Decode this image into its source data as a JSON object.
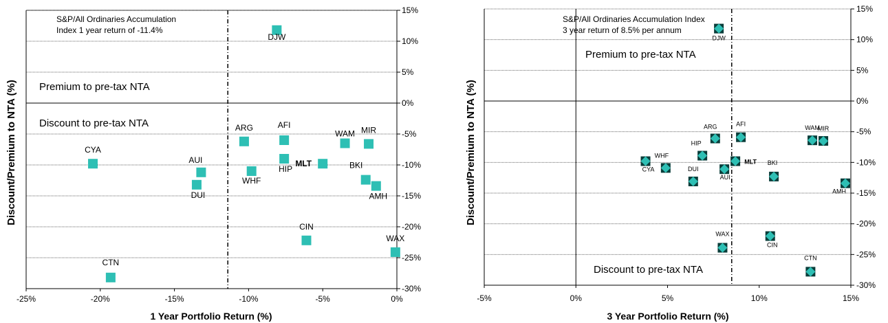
{
  "chart_data": [
    {
      "type": "scatter",
      "xlabel": "1 Year Portfolio Return (%)",
      "ylabel": "Discount/Premium to NTA (%)",
      "xlim": [
        -25,
        0
      ],
      "ylim": [
        -30,
        15
      ],
      "x_ticks": [
        "-25%",
        "-20%",
        "-15%",
        "-10%",
        "-5%",
        "0%"
      ],
      "y_ticks": [
        "15%",
        "10%",
        "5%",
        "0%",
        "-5%",
        "-10%",
        "-15%",
        "-20%",
        "-25%",
        "-30%"
      ],
      "grid": "horizontal dotted",
      "index_line_x": -11.4,
      "index_note": [
        "S&P/All Ordinaries Accumulation",
        "Index 1 year return of -11.4%"
      ],
      "region_labels": {
        "premium": "Premium to pre-tax NTA",
        "discount": "Discount to pre-tax NTA"
      },
      "marker": "square",
      "marker_color": "#2ebfb4",
      "points": [
        {
          "label": "DJW",
          "x": -8.1,
          "y": 11.8
        },
        {
          "label": "ARG",
          "x": -10.3,
          "y": -6.2
        },
        {
          "label": "AFI",
          "x": -7.6,
          "y": -6.0
        },
        {
          "label": "WAM",
          "x": -3.5,
          "y": -6.5
        },
        {
          "label": "MIR",
          "x": -1.9,
          "y": -6.6
        },
        {
          "label": "MLT",
          "x": -5.0,
          "y": -9.8,
          "bold": true
        },
        {
          "label": "CYA",
          "x": -20.5,
          "y": -9.8
        },
        {
          "label": "AUI",
          "x": -13.2,
          "y": -11.2
        },
        {
          "label": "DUI",
          "x": -13.5,
          "y": -13.2
        },
        {
          "label": "WHF",
          "x": -9.8,
          "y": -11.0
        },
        {
          "label": "HIP",
          "x": -7.6,
          "y": -9.0
        },
        {
          "label": "BKI",
          "x": -2.1,
          "y": -12.4
        },
        {
          "label": "AMH",
          "x": -1.4,
          "y": -13.4
        },
        {
          "label": "CIN",
          "x": -6.1,
          "y": -22.2
        },
        {
          "label": "WAX",
          "x": -0.1,
          "y": -24.1
        },
        {
          "label": "CTN",
          "x": -19.3,
          "y": -28.2
        }
      ]
    },
    {
      "type": "scatter",
      "xlabel": "3 Year Portfolio Return (%)",
      "ylabel": "Discount/Premium to NTA (%)",
      "xlim": [
        -5,
        15
      ],
      "ylim": [
        -30,
        15
      ],
      "x_ticks": [
        "-5%",
        "0%",
        "5%",
        "10%",
        "15%"
      ],
      "y_ticks": [
        "15%",
        "10%",
        "5%",
        "0%",
        "-5%",
        "-10%",
        "-15%",
        "-20%",
        "-25%",
        "-30%"
      ],
      "grid": "horizontal dotted",
      "index_line_x": 8.5,
      "index_note": [
        "S&P/All Ordinaries Accumulation Index",
        "3 year return of 8.5% per annum"
      ],
      "region_labels": {
        "premium": "Premium to pre-tax NTA",
        "discount": "Discount to pre-tax NTA"
      },
      "marker": "diamond in square",
      "marker_color": "#2ebfb4",
      "points": [
        {
          "label": "DJW",
          "x": 7.8,
          "y": 11.8
        },
        {
          "label": "ARG",
          "x": 7.6,
          "y": -6.1
        },
        {
          "label": "AFI",
          "x": 9.0,
          "y": -5.9
        },
        {
          "label": "WAM",
          "x": 12.9,
          "y": -6.4
        },
        {
          "label": "MIR",
          "x": 13.5,
          "y": -6.5
        },
        {
          "label": "WHF",
          "x": 4.9,
          "y": -10.9
        },
        {
          "label": "HIP",
          "x": 6.9,
          "y": -8.9
        },
        {
          "label": "MLT",
          "x": 8.7,
          "y": -9.8,
          "bold": true
        },
        {
          "label": "CYA",
          "x": 3.8,
          "y": -9.8
        },
        {
          "label": "DUI",
          "x": 6.4,
          "y": -13.1
        },
        {
          "label": "AUI",
          "x": 8.1,
          "y": -11.1
        },
        {
          "label": "BKI",
          "x": 10.8,
          "y": -12.3
        },
        {
          "label": "AMH",
          "x": 14.7,
          "y": -13.4
        },
        {
          "label": "CIN",
          "x": 10.6,
          "y": -22.0
        },
        {
          "label": "WAX",
          "x": 8.0,
          "y": -23.9
        },
        {
          "label": "CTN",
          "x": 12.8,
          "y": -27.8
        }
      ]
    }
  ]
}
